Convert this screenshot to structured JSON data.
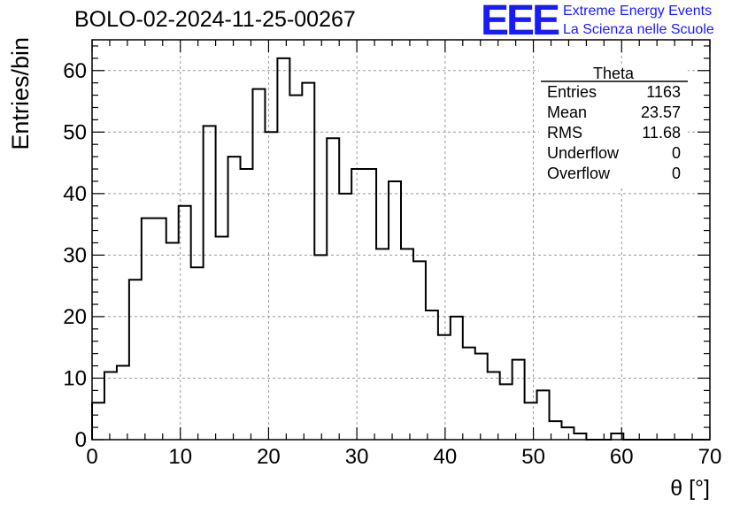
{
  "title": "BOLO-02-2024-11-25-00267",
  "logo": {
    "mark": "EEE",
    "line1": "Extreme Energy Events",
    "line2": "La Scienza nelle Scuole",
    "color": "#1a1aff"
  },
  "chart_data": {
    "type": "histogram",
    "xlabel": "θ [°]",
    "ylabel": "Entries/bin",
    "xlim": [
      0,
      70
    ],
    "ylim": [
      0,
      65
    ],
    "xticks": [
      0,
      10,
      20,
      30,
      40,
      50,
      60,
      70
    ],
    "yticks": [
      0,
      10,
      20,
      30,
      40,
      50,
      60
    ],
    "grid": true,
    "bin_width": 1.4,
    "bin_edges_start": 0,
    "values": [
      6,
      11,
      12,
      26,
      36,
      36,
      32,
      38,
      28,
      51,
      33,
      46,
      44,
      57,
      50,
      62,
      56,
      58,
      30,
      49,
      40,
      44,
      44,
      31,
      42,
      31,
      29,
      21,
      17,
      20,
      15,
      14,
      11,
      9,
      13,
      6,
      8,
      3,
      2,
      1,
      0,
      0,
      1,
      0,
      0,
      0,
      0,
      0,
      0,
      0
    ],
    "stats": {
      "header": "Theta",
      "rows": [
        {
          "label": "Entries",
          "value": "1163"
        },
        {
          "label": "Mean",
          "value": "23.57"
        },
        {
          "label": "RMS",
          "value": "11.68"
        },
        {
          "label": "Underflow",
          "value": "0"
        },
        {
          "label": "Overflow",
          "value": "0"
        }
      ]
    }
  }
}
